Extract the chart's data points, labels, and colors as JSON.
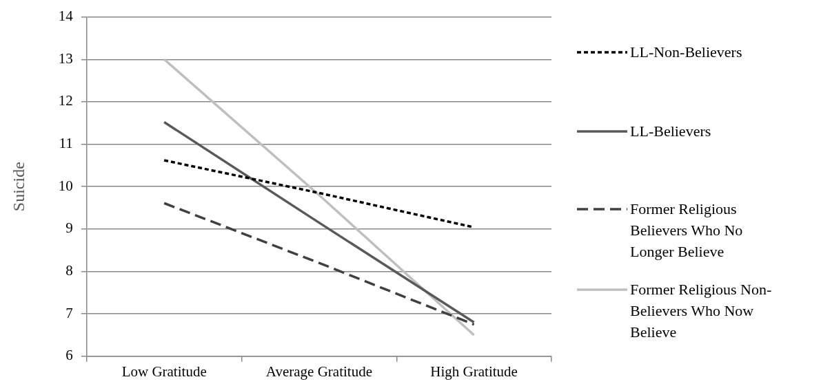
{
  "chart_data": {
    "type": "line",
    "ylabel": "Suicide",
    "categories": [
      "Low Gratitude",
      "Average Gratitude",
      "High Gratitude"
    ],
    "series": [
      {
        "name": "LL-Non-Believers",
        "color": "#000000",
        "line_style": "dotted",
        "values": [
          10.62,
          9.85,
          9.04
        ]
      },
      {
        "name": "LL-Believers",
        "color": "#595959",
        "line_style": "solid",
        "values": [
          11.52,
          9.15,
          6.8
        ]
      },
      {
        "name": "Former Religious Believers Who No Longer Believe",
        "color": "#404040",
        "line_style": "dashed",
        "values": [
          9.61,
          8.2,
          6.75
        ]
      },
      {
        "name": "Former Religious Non-Believers Who Now Believe",
        "color": "#bfbfbf",
        "line_style": "solid",
        "values": [
          13.0,
          9.8,
          6.5
        ]
      }
    ],
    "ylim": [
      6,
      14
    ],
    "yticks": [
      6,
      7,
      8,
      9,
      10,
      11,
      12,
      13,
      14
    ],
    "grid": "y",
    "legend": "right",
    "marker": "none"
  }
}
